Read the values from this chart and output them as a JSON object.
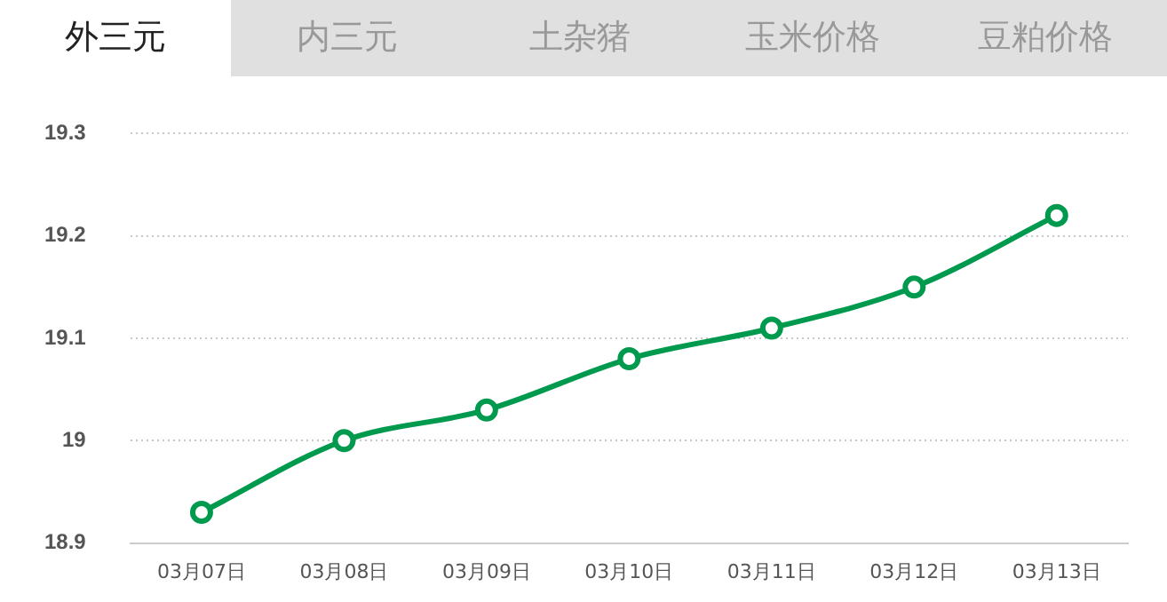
{
  "chart_data": {
    "type": "line",
    "annotations": [
      "外三元",
      "内三元",
      "土杂猪",
      "玉米价格",
      "豆粕价格"
    ],
    "categories": [
      "03月07日",
      "03月08日",
      "03月09日",
      "03月10日",
      "03月11日",
      "03月12日",
      "03月13日"
    ],
    "series": [
      {
        "color": "#009a4e",
        "values": [
          18.93,
          19.0,
          19.03,
          19.08,
          19.11,
          19.15,
          19.22
        ]
      }
    ],
    "ylim": [
      18.9,
      19.3
    ],
    "yticks": [
      18.9,
      19,
      19.1,
      19.2,
      19.3
    ],
    "grid": "y",
    "marker": "circle",
    "line_style": "solid",
    "legend": false
  }
}
